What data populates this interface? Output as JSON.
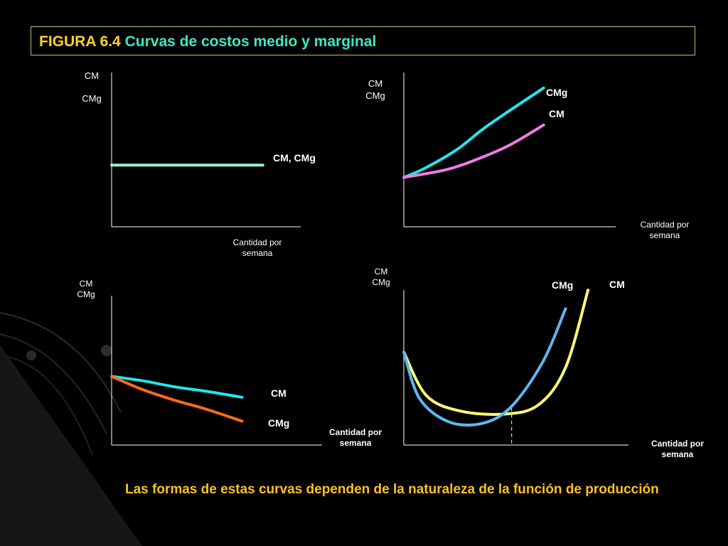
{
  "title": {
    "figure": "FIGURA 6.4",
    "name": "Curvas de costos medio y marginal"
  },
  "colors": {
    "title_figure": "#ffd61f",
    "title_name": "#3ee8c8",
    "note": "#ffc21a",
    "axis": "#ffffff",
    "flat": "#9af3c4",
    "cyan": "#22e6ee",
    "pink": "#f07be8",
    "orange": "#ff6b1a",
    "yellow": "#ffff70",
    "lightblue": "#5cb8f0"
  },
  "chart_data": [
    {
      "type": "line",
      "ylabel_lines": [
        "CM",
        "CMg"
      ],
      "xlabel_lines": [
        "Cantidad por",
        "semana"
      ],
      "xlim": [
        0,
        10
      ],
      "ylim": [
        0,
        10
      ],
      "series": [
        {
          "name": "CM, CMg",
          "color": "#9af3c4",
          "x": [
            0,
            8
          ],
          "y": [
            4,
            4
          ]
        }
      ]
    },
    {
      "type": "line",
      "ylabel_lines": [
        "CM",
        "CMg"
      ],
      "xlabel_lines": [
        "Cantidad por",
        "semana"
      ],
      "xlim": [
        0,
        10
      ],
      "ylim": [
        0,
        10
      ],
      "series": [
        {
          "name": "CMg",
          "color": "#22e6ee",
          "x": [
            0,
            1,
            2.5,
            4,
            6.6
          ],
          "y": [
            3.2,
            3.8,
            5.0,
            6.6,
            9.0
          ]
        },
        {
          "name": "CM",
          "color": "#f07be8",
          "x": [
            0,
            2,
            3.5,
            5,
            6.6
          ],
          "y": [
            3.2,
            3.7,
            4.4,
            5.3,
            6.6
          ]
        }
      ]
    },
    {
      "type": "line",
      "ylabel_lines": [
        "CM",
        "CMg"
      ],
      "xlabel_lines": [
        "Cantidad por",
        "semana"
      ],
      "xlim": [
        0,
        10
      ],
      "ylim": [
        0,
        10
      ],
      "series": [
        {
          "name": "CM",
          "color": "#22e6ee",
          "x": [
            0,
            1.5,
            3,
            4.5,
            6.2
          ],
          "y": [
            4.6,
            4.3,
            3.9,
            3.6,
            3.2
          ]
        },
        {
          "name": "CMg",
          "color": "#ff6b1a",
          "x": [
            0,
            1.5,
            3,
            4.5,
            6.2
          ],
          "y": [
            4.6,
            3.7,
            3.0,
            2.4,
            1.6
          ]
        }
      ]
    },
    {
      "type": "line",
      "ylabel_lines": [
        "CM",
        "CMg"
      ],
      "xlabel_lines": [
        "Cantidad por",
        "semana"
      ],
      "xlim": [
        0,
        10
      ],
      "ylim": [
        0,
        10
      ],
      "series": [
        {
          "name": "CM",
          "color": "#ffff70",
          "x": [
            0,
            1,
            2.5,
            4.5,
            6,
            7.2,
            8.2
          ],
          "y": [
            6.0,
            3.2,
            2.2,
            2.0,
            2.6,
            5.0,
            10.0
          ]
        },
        {
          "name": "CMg",
          "color": "#5cb8f0",
          "x": [
            0,
            0.7,
            2,
            3.5,
            4.8,
            6.2,
            7.2
          ],
          "y": [
            6.0,
            3.0,
            1.5,
            1.4,
            2.5,
            5.4,
            8.8
          ]
        }
      ],
      "annotations": [
        {
          "type": "vline",
          "style": "dashed",
          "x": 4.8
        }
      ]
    }
  ],
  "note": "Las formas de estas curvas dependen de la naturaleza de la función de producción"
}
